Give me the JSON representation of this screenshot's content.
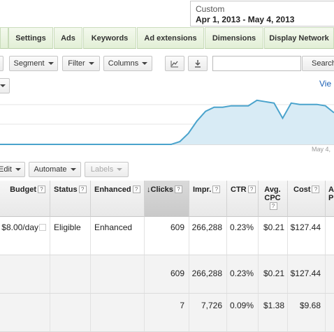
{
  "date_range": {
    "label": "Custom",
    "value": "Apr 1, 2013 - May 4, 2013"
  },
  "tabs": [
    "Settings",
    "Ads",
    "Keywords",
    "Ad extensions",
    "Dimensions",
    "Display Network"
  ],
  "toolbar": {
    "segment": "Segment",
    "filter": "Filter",
    "columns": "Columns",
    "search_label": "Search",
    "search_value": ""
  },
  "view_link": "Vie",
  "chart": {
    "date_label": "May 4,",
    "fill_color": "#d8ebf5",
    "line_color": "#4aa3cc"
  },
  "chart_data": {
    "type": "area",
    "values": [
      0,
      0,
      0,
      0,
      0,
      0,
      0,
      0,
      0,
      0,
      0,
      0,
      0,
      0,
      0,
      0,
      0,
      0,
      0,
      0,
      0,
      2,
      8,
      17,
      24,
      27,
      27,
      28,
      28,
      28,
      32,
      31,
      30,
      19,
      30,
      29,
      29,
      29,
      28,
      23
    ],
    "ylim": [
      0,
      40
    ]
  },
  "actions": {
    "edit": "Edit",
    "automate": "Automate",
    "labels": "Labels"
  },
  "table": {
    "columns": [
      "Budget",
      "Status",
      "Enhanced",
      "Clicks",
      "Impr.",
      "CTR",
      "Avg. CPC",
      "Cost",
      "A P"
    ],
    "rows": [
      {
        "budget": "$8.00/day",
        "status": "Eligible",
        "enhanced": "Enhanced",
        "clicks": "609",
        "impr": "266,288",
        "ctr": "0.23%",
        "cpc": "$0.21",
        "cost": "$127.44"
      },
      {
        "budget": "",
        "status": "",
        "enhanced": "",
        "clicks": "609",
        "impr": "266,288",
        "ctr": "0.23%",
        "cpc": "$0.21",
        "cost": "$127.44"
      },
      {
        "budget": "",
        "status": "",
        "enhanced": "",
        "clicks": "7",
        "impr": "7,726",
        "ctr": "0.09%",
        "cpc": "$1.38",
        "cost": "$9.68"
      }
    ]
  }
}
